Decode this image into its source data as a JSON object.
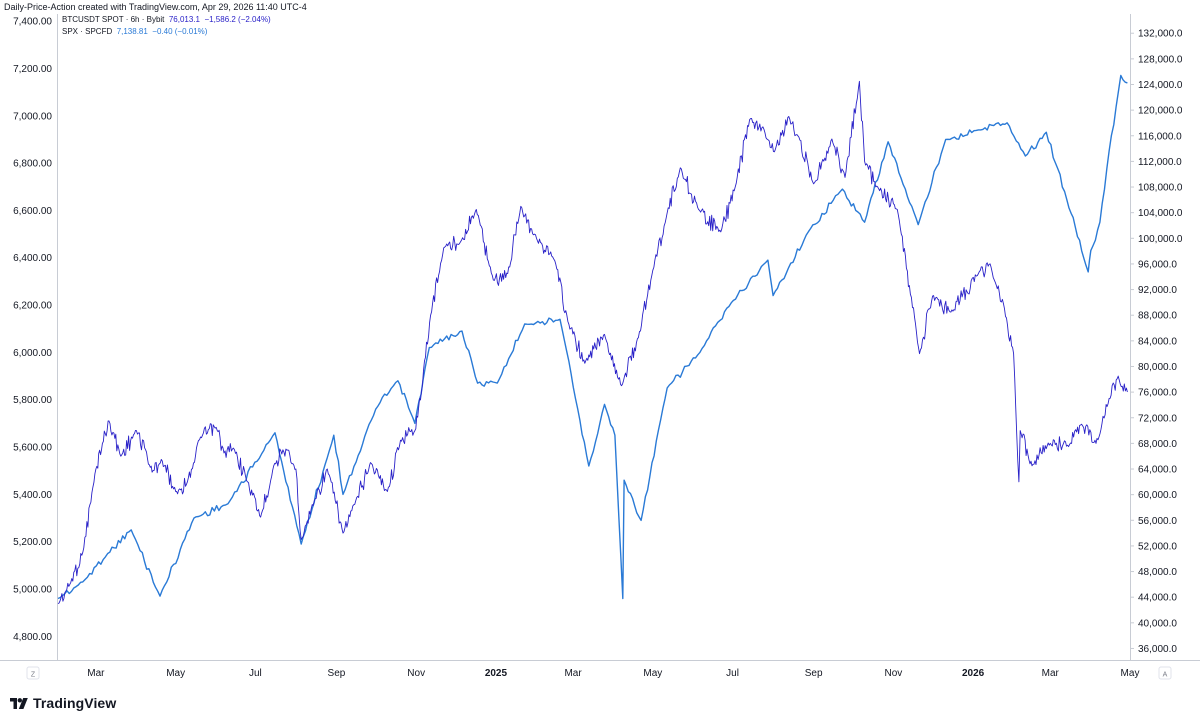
{
  "header": {
    "attribution": "Daily-Price-Action created with TradingView.com, Apr 29, 2026 11:40 UTC-4"
  },
  "legend": [
    {
      "name": "BTCUSDT SPOT · 6h · Bybit",
      "value": "76,013.1",
      "change": "−1,586.2 (−2.04%)",
      "color": "#2a22c8"
    },
    {
      "name": "SPX · SPCFD",
      "value": "7,138.81",
      "change": "−0.40 (−0.01%)",
      "color": "#2a7ad6"
    }
  ],
  "footer": {
    "brand": "TradingView",
    "z_button": "Z",
    "a_button": "A"
  },
  "chart_data": {
    "type": "line",
    "grid": false,
    "x_tick_labels": [
      "Mar",
      "May",
      "Jul",
      "Sep",
      "Nov",
      "2025",
      "Mar",
      "May",
      "Jul",
      "Sep",
      "Nov",
      "2026",
      "Mar",
      "May"
    ],
    "left_axis": {
      "ylim": [
        4700,
        7430
      ],
      "ticks": [
        "4,800.00",
        "5,000.00",
        "5,200.00",
        "5,400.00",
        "5,600.00",
        "5,800.00",
        "6,000.00",
        "6,200.00",
        "6,400.00",
        "6,600.00",
        "6,800.00",
        "7,000.00",
        "7,200.00",
        "7,400.00"
      ]
    },
    "right_axis": {
      "ylim": [
        34200,
        135000
      ],
      "ticks": [
        "36,000.0",
        "40,000.0",
        "44,000.0",
        "48,000.0",
        "52,000.0",
        "56,000.0",
        "60,000.0",
        "64,000.0",
        "68,000.0",
        "72,000.0",
        "76,000.0",
        "80,000.0",
        "84,000.0",
        "88,000.0",
        "92,000.0",
        "96,000.0",
        "100,000.0",
        "104,000.0",
        "108,000.0",
        "112,000.0",
        "116,000.0",
        "120,000.0",
        "124,000.0",
        "128,000.0",
        "132,000.0"
      ]
    },
    "series": [
      {
        "axis": "right",
        "color": "#2a22c8",
        "x": [
          "2024-02-01",
          "2024-02-10",
          "2024-02-20",
          "2024-03-01",
          "2024-03-06",
          "2024-03-11",
          "2024-03-20",
          "2024-04-01",
          "2024-04-08",
          "2024-04-13",
          "2024-04-20",
          "2024-05-01",
          "2024-05-10",
          "2024-05-20",
          "2024-06-01",
          "2024-06-07",
          "2024-06-15",
          "2024-06-25",
          "2024-07-05",
          "2024-07-15",
          "2024-07-22",
          "2024-08-01",
          "2024-08-05",
          "2024-08-15",
          "2024-08-25",
          "2024-09-06",
          "2024-09-15",
          "2024-09-27",
          "2024-10-10",
          "2024-10-20",
          "2024-10-31",
          "2024-11-05",
          "2024-11-12",
          "2024-11-22",
          "2024-12-05",
          "2024-12-17",
          "2024-12-30",
          "2025-01-10",
          "2025-01-20",
          "2025-02-01",
          "2025-02-15",
          "2025-02-25",
          "2025-03-10",
          "2025-03-25",
          "2025-04-07",
          "2025-04-20",
          "2025-05-01",
          "2025-05-12",
          "2025-05-22",
          "2025-06-05",
          "2025-06-22",
          "2025-07-03",
          "2025-07-14",
          "2025-07-25",
          "2025-08-02",
          "2025-08-13",
          "2025-08-20",
          "2025-09-01",
          "2025-09-15",
          "2025-09-25",
          "2025-10-06",
          "2025-10-10",
          "2025-10-20",
          "2025-11-04",
          "2025-11-21",
          "2025-12-01",
          "2025-12-15",
          "2026-01-05",
          "2026-01-14",
          "2026-01-25",
          "2026-02-01",
          "2026-02-05",
          "2026-02-06",
          "2026-02-15",
          "2026-03-01",
          "2026-03-15",
          "2026-03-25",
          "2026-04-05",
          "2026-04-15",
          "2026-04-22",
          "2026-04-29"
        ],
        "values": [
          43000,
          46000,
          51000,
          64000,
          68000,
          71500,
          66000,
          70000,
          67000,
          63500,
          65500,
          60500,
          62000,
          69000,
          70500,
          66500,
          67000,
          62000,
          56500,
          64500,
          67000,
          64000,
          53000,
          59000,
          64000,
          54000,
          58500,
          65000,
          60500,
          68500,
          70000,
          76000,
          88000,
          98500,
          99500,
          104500,
          93500,
          94500,
          105000,
          100000,
          96500,
          87000,
          80500,
          85000,
          77000,
          84500,
          95000,
          104000,
          111000,
          104500,
          101000,
          108000,
          118500,
          117000,
          113500,
          119000,
          116000,
          108500,
          115500,
          109500,
          124500,
          112000,
          108000,
          104500,
          82000,
          91000,
          88500,
          94500,
          96000,
          89000,
          82000,
          62000,
          70000,
          64500,
          68000,
          67500,
          71000,
          68000,
          75000,
          78500,
          76013
        ]
      },
      {
        "axis": "left",
        "color": "#2a7ad6",
        "x": [
          "2024-02-01",
          "2024-02-20",
          "2024-03-10",
          "2024-03-28",
          "2024-04-19",
          "2024-05-15",
          "2024-06-10",
          "2024-07-16",
          "2024-08-05",
          "2024-08-30",
          "2024-09-06",
          "2024-10-01",
          "2024-10-18",
          "2024-10-31",
          "2024-11-11",
          "2024-12-06",
          "2024-12-18",
          "2025-01-02",
          "2025-01-23",
          "2025-02-19",
          "2025-03-13",
          "2025-03-25",
          "2025-04-02",
          "2025-04-08",
          "2025-04-09",
          "2025-04-22",
          "2025-05-12",
          "2025-06-06",
          "2025-06-30",
          "2025-07-28",
          "2025-08-01",
          "2025-08-28",
          "2025-09-23",
          "2025-10-10",
          "2025-10-28",
          "2025-11-20",
          "2025-12-11",
          "2026-01-05",
          "2026-01-27",
          "2026-02-10",
          "2026-02-26",
          "2026-03-05",
          "2026-03-12",
          "2026-03-30",
          "2026-04-01",
          "2026-04-08",
          "2026-04-15",
          "2026-04-24",
          "2026-04-29"
        ],
        "values": [
          4960,
          5030,
          5150,
          5250,
          4970,
          5300,
          5360,
          5660,
          5190,
          5650,
          5400,
          5760,
          5880,
          5700,
          6020,
          6090,
          5870,
          5870,
          6120,
          6140,
          5520,
          5780,
          5650,
          4960,
          5460,
          5290,
          5850,
          6000,
          6210,
          6390,
          6240,
          6510,
          6690,
          6550,
          6890,
          6540,
          6900,
          6940,
          6970,
          6830,
          6930,
          6800,
          6680,
          6340,
          6430,
          6550,
          6850,
          7170,
          7138.81
        ]
      }
    ]
  }
}
